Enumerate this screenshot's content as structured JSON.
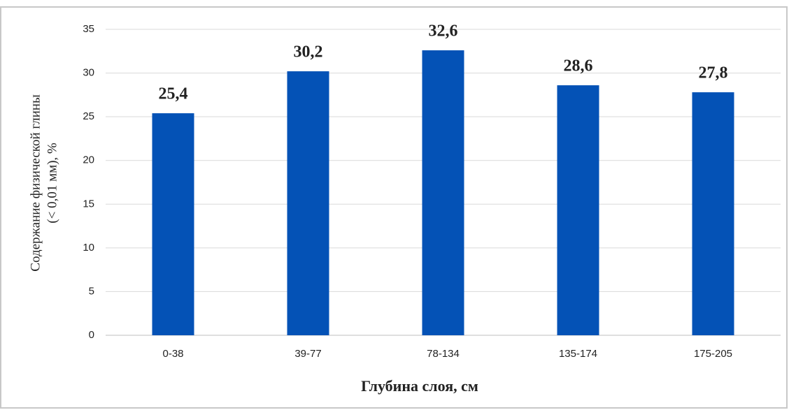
{
  "chart_data": {
    "type": "bar",
    "xlabel": "Глубина слоя, см",
    "ylabel": [
      "Содержание физической глины",
      "(< 0,01 мм), %"
    ],
    "categories": [
      "0-38",
      "39-77",
      "78-134",
      "135-174",
      "175-205"
    ],
    "values": [
      25.4,
      30.2,
      32.6,
      28.6,
      27.8
    ],
    "value_labels": [
      "25,4",
      "30,2",
      "32,6",
      "28,6",
      "27,8"
    ],
    "color": "#0452b6",
    "ylim": [
      0,
      35
    ],
    "yticks": [
      0,
      5,
      10,
      15,
      20,
      25,
      30,
      35
    ],
    "grid": true
  }
}
